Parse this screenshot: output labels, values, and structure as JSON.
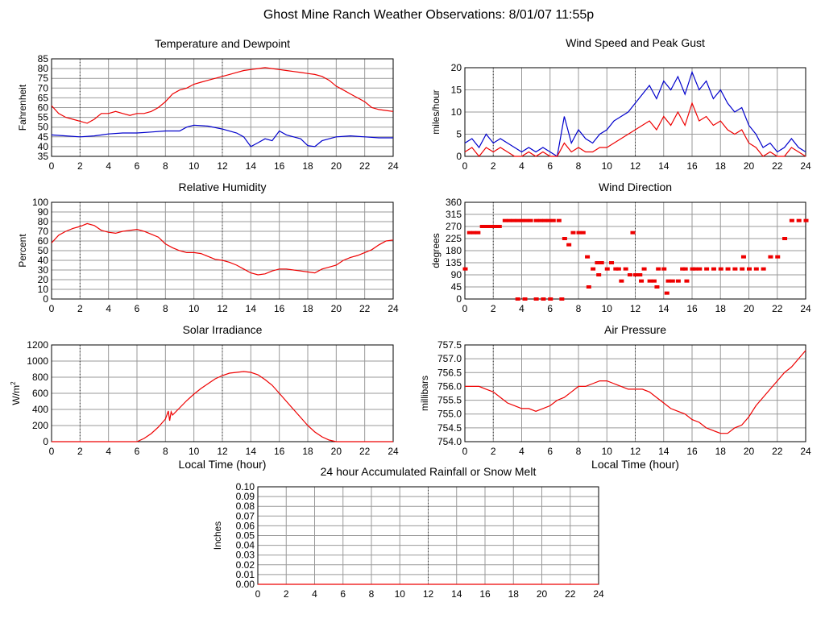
{
  "page": {
    "title": "Ghost Mine Ranch Weather Observations: 8/01/07 11:55p"
  },
  "colors": {
    "red": "#ee0000",
    "blue": "#0000cc",
    "grid": "#999999",
    "axis": "#000000"
  },
  "chart_data": [
    {
      "id": "temp",
      "type": "line",
      "title": "Temperature and Dewpoint",
      "ylabel": "Fahrenheit",
      "xlabel": "",
      "xlim": [
        0,
        24
      ],
      "ylim": [
        35,
        85
      ],
      "xticks": [
        0,
        2,
        4,
        6,
        8,
        10,
        12,
        14,
        16,
        18,
        20,
        22,
        24
      ],
      "yticks": [
        35,
        40,
        45,
        50,
        55,
        60,
        65,
        70,
        75,
        80,
        85
      ],
      "grid": true,
      "series": [
        {
          "color": "#ee0000",
          "x": [
            0,
            0.5,
            1,
            1.5,
            2,
            2.5,
            3,
            3.5,
            4,
            4.5,
            5,
            5.5,
            6,
            6.5,
            7,
            7.5,
            8,
            8.5,
            9,
            9.5,
            10,
            10.5,
            11,
            11.5,
            12,
            12.5,
            13,
            13.5,
            14,
            14.5,
            15,
            15.5,
            16,
            16.5,
            17,
            17.5,
            18,
            18.5,
            19,
            19.5,
            20,
            20.5,
            21,
            21.5,
            22,
            22.5,
            23,
            23.5,
            24
          ],
          "y": [
            61,
            57,
            55,
            54,
            53,
            52,
            54,
            57,
            57,
            58,
            57,
            56,
            57,
            57,
            58,
            60,
            63,
            67,
            69,
            70,
            72,
            73,
            74,
            75,
            76,
            77,
            78,
            79,
            79.5,
            80,
            80.5,
            80,
            79.5,
            79,
            78.5,
            78,
            77.5,
            77,
            76,
            74,
            71,
            69,
            67,
            65,
            63,
            60,
            59,
            58.5,
            58
          ]
        },
        {
          "color": "#0000cc",
          "x": [
            0,
            1,
            2,
            3,
            4,
            5,
            6,
            7,
            8,
            9,
            9.5,
            10,
            11,
            12,
            13,
            13.5,
            14,
            14.5,
            15,
            15.5,
            16,
            16.5,
            17,
            17.5,
            18,
            18.5,
            19,
            19.5,
            20,
            21,
            22,
            23,
            24
          ],
          "y": [
            46,
            45.5,
            45,
            45.5,
            46.5,
            47,
            47,
            47.5,
            48,
            48,
            50,
            51,
            50.5,
            49,
            47,
            45,
            40,
            42,
            44,
            43,
            48,
            46,
            45,
            44,
            40.5,
            40,
            43,
            44,
            45,
            45.5,
            45,
            44.5,
            44.5
          ]
        }
      ]
    },
    {
      "id": "wind",
      "type": "line",
      "title": "Wind Speed and Peak Gust",
      "ylabel": "miles/hour",
      "xlabel": "",
      "xlim": [
        0,
        24
      ],
      "ylim": [
        0,
        20
      ],
      "xticks": [
        0,
        2,
        4,
        6,
        8,
        10,
        12,
        14,
        16,
        18,
        20,
        22,
        24
      ],
      "yticks": [
        0,
        5,
        10,
        15,
        20
      ],
      "grid": true,
      "series": [
        {
          "color": "#0000cc",
          "x": [
            0,
            0.5,
            1,
            1.5,
            2,
            2.5,
            3,
            3.5,
            4,
            4.5,
            5,
            5.5,
            6,
            6.5,
            7,
            7.5,
            8,
            8.5,
            9,
            9.5,
            10,
            10.5,
            11,
            11.5,
            12,
            12.5,
            13,
            13.5,
            14,
            14.5,
            15,
            15.5,
            16,
            16.5,
            17,
            17.5,
            18,
            18.5,
            19,
            19.5,
            20,
            20.5,
            21,
            21.5,
            22,
            22.5,
            23,
            23.5,
            24
          ],
          "y": [
            3,
            4,
            2,
            5,
            3,
            4,
            3,
            2,
            1,
            2,
            1,
            2,
            1,
            0,
            9,
            3,
            6,
            4,
            3,
            5,
            6,
            8,
            9,
            10,
            12,
            14,
            16,
            13,
            17,
            15,
            18,
            14,
            19,
            15,
            17,
            13,
            15,
            12,
            10,
            11,
            7,
            5,
            2,
            3,
            1,
            2,
            4,
            2,
            1
          ]
        },
        {
          "color": "#ee0000",
          "x": [
            0,
            0.5,
            1,
            1.5,
            2,
            2.5,
            3,
            3.5,
            4,
            4.5,
            5,
            5.5,
            6,
            6.5,
            7,
            7.5,
            8,
            8.5,
            9,
            9.5,
            10,
            10.5,
            11,
            11.5,
            12,
            12.5,
            13,
            13.5,
            14,
            14.5,
            15,
            15.5,
            16,
            16.5,
            17,
            17.5,
            18,
            18.5,
            19,
            19.5,
            20,
            20.5,
            21,
            21.5,
            22,
            22.5,
            23,
            23.5,
            24
          ],
          "y": [
            1,
            2,
            0,
            2,
            1,
            2,
            1,
            0,
            0,
            1,
            0,
            1,
            0,
            0,
            3,
            1,
            2,
            1,
            1,
            2,
            2,
            3,
            4,
            5,
            6,
            7,
            8,
            6,
            9,
            7,
            10,
            7,
            12,
            8,
            9,
            7,
            8,
            6,
            5,
            6,
            3,
            2,
            0,
            1,
            0,
            0,
            2,
            1,
            0
          ]
        }
      ]
    },
    {
      "id": "rh",
      "type": "line",
      "title": "Relative Humidity",
      "ylabel": "Percent",
      "xlabel": "",
      "xlim": [
        0,
        24
      ],
      "ylim": [
        0,
        100
      ],
      "xticks": [
        0,
        2,
        4,
        6,
        8,
        10,
        12,
        14,
        16,
        18,
        20,
        22,
        24
      ],
      "yticks": [
        0,
        10,
        20,
        30,
        40,
        50,
        60,
        70,
        80,
        90,
        100
      ],
      "grid": true,
      "series": [
        {
          "color": "#ee0000",
          "x": [
            0,
            0.5,
            1,
            1.5,
            2,
            2.5,
            3,
            3.5,
            4,
            4.5,
            5,
            5.5,
            6,
            6.5,
            7,
            7.5,
            8,
            8.5,
            9,
            9.5,
            10,
            10.5,
            11,
            11.5,
            12,
            12.5,
            13,
            13.5,
            14,
            14.5,
            15,
            15.5,
            16,
            16.5,
            17,
            17.5,
            18,
            18.5,
            19,
            19.5,
            20,
            20.5,
            21,
            21.5,
            22,
            22.5,
            23,
            23.5,
            24
          ],
          "y": [
            58,
            66,
            70,
            73,
            75,
            78,
            76,
            71,
            69,
            68,
            70,
            71,
            72,
            70,
            67,
            64,
            57,
            53,
            50,
            48,
            48,
            47,
            44,
            41,
            40,
            38,
            35,
            31,
            27,
            25,
            26,
            29,
            31,
            31,
            30,
            29,
            28,
            27,
            31,
            33,
            35,
            40,
            43,
            45,
            48,
            51,
            56,
            60,
            61
          ]
        }
      ]
    },
    {
      "id": "wdir",
      "type": "scatter",
      "title": "Wind Direction",
      "ylabel": "degrees",
      "xlabel": "",
      "xlim": [
        0,
        24
      ],
      "ylim": [
        0,
        360
      ],
      "xticks": [
        0,
        2,
        4,
        6,
        8,
        10,
        12,
        14,
        16,
        18,
        20,
        22,
        24
      ],
      "yticks": [
        0,
        45,
        90,
        135,
        180,
        225,
        270,
        315,
        360
      ],
      "grid": true,
      "series": [
        {
          "color": "#ee0000",
          "x": [
            0,
            0.3,
            0.6,
            0.9,
            1.2,
            1.5,
            1.8,
            2.1,
            2.4,
            2.8,
            3.1,
            3.4,
            3.7,
            4.0,
            4.3,
            4.6,
            5.0,
            5.3,
            5.6,
            5.9,
            6.2,
            6.6,
            7.0,
            7.3,
            7.6,
            8.0,
            8.3,
            8.7,
            9.0,
            9.3,
            9.6,
            10.0,
            10.3,
            10.6,
            11.0,
            11.3,
            11.6,
            12.0,
            12.3,
            12.6,
            13.0,
            13.3,
            13.6,
            14.0,
            14.3,
            14.6,
            15.0,
            15.3,
            15.6,
            16.0,
            16.5,
            17.0,
            17.5,
            18.0,
            18.5,
            19.0,
            19.5,
            20.0,
            20.5,
            21.0,
            21.5,
            22.0,
            22.5,
            23.0,
            23.5,
            24.0,
            3.7,
            4.2,
            5.0,
            5.5,
            6.0,
            6.8,
            8.6,
            9.4,
            10.8,
            11.8,
            12.4,
            13.5,
            14.2,
            15.5,
            16.2,
            19.6
          ],
          "y": [
            112,
            247,
            247,
            247,
            270,
            270,
            270,
            270,
            270,
            292,
            292,
            292,
            292,
            292,
            292,
            292,
            292,
            292,
            292,
            292,
            292,
            292,
            225,
            202,
            247,
            247,
            247,
            45,
            112,
            135,
            135,
            112,
            135,
            112,
            67,
            112,
            90,
            90,
            90,
            112,
            67,
            67,
            112,
            112,
            67,
            67,
            67,
            112,
            67,
            112,
            112,
            112,
            112,
            112,
            112,
            112,
            112,
            112,
            112,
            112,
            157,
            157,
            225,
            292,
            292,
            292,
            0,
            0,
            0,
            0,
            0,
            0,
            157,
            90,
            112,
            247,
            67,
            45,
            22,
            112,
            112,
            157
          ]
        }
      ]
    },
    {
      "id": "solar",
      "type": "line",
      "title": "Solar Irradiance",
      "ylabel": "W/m",
      "ylabel_sup": "2",
      "xlabel": "Local Time (hour)",
      "xlim": [
        0,
        24
      ],
      "ylim": [
        0,
        1200
      ],
      "xticks": [
        0,
        2,
        4,
        6,
        8,
        10,
        12,
        14,
        16,
        18,
        20,
        22,
        24
      ],
      "yticks": [
        0,
        200,
        400,
        600,
        800,
        1000,
        1200
      ],
      "grid": true,
      "series": [
        {
          "color": "#ee0000",
          "x": [
            0,
            1,
            2,
            3,
            4,
            5,
            6,
            6.5,
            7,
            7.5,
            8,
            8.2,
            8.3,
            8.4,
            8.5,
            9,
            9.5,
            10,
            10.5,
            11,
            11.5,
            12,
            12.5,
            13,
            13.5,
            14,
            14.5,
            15,
            15.5,
            16,
            16.5,
            17,
            17.5,
            18,
            18.5,
            19,
            19.5,
            20,
            21,
            22,
            23,
            24
          ],
          "y": [
            0,
            0,
            0,
            0,
            0,
            0,
            0,
            40,
            100,
            180,
            280,
            380,
            260,
            370,
            330,
            420,
            510,
            590,
            660,
            720,
            780,
            820,
            850,
            860,
            870,
            860,
            830,
            770,
            700,
            600,
            500,
            400,
            300,
            200,
            120,
            60,
            20,
            0,
            0,
            0,
            0,
            0
          ]
        }
      ]
    },
    {
      "id": "pressure",
      "type": "line",
      "title": "Air Pressure",
      "ylabel": "millibars",
      "xlabel": "Local Time (hour)",
      "xlim": [
        0,
        24
      ],
      "ylim": [
        754.0,
        757.5
      ],
      "xticks": [
        0,
        2,
        4,
        6,
        8,
        10,
        12,
        14,
        16,
        18,
        20,
        22,
        24
      ],
      "yticks": [
        "754.0",
        "754.5",
        "755.0",
        "755.5",
        "756.0",
        "756.5",
        "757.0",
        "757.5"
      ],
      "grid": true,
      "series": [
        {
          "color": "#ee0000",
          "x": [
            0,
            0.5,
            1,
            1.5,
            2,
            2.5,
            3,
            3.5,
            4,
            4.5,
            5,
            5.5,
            6,
            6.5,
            7,
            7.5,
            8,
            8.5,
            9,
            9.5,
            10,
            10.5,
            11,
            11.5,
            12,
            12.5,
            13,
            13.5,
            14,
            14.5,
            15,
            15.5,
            16,
            16.5,
            17,
            17.5,
            18,
            18.5,
            19,
            19.5,
            20,
            20.5,
            21,
            21.5,
            22,
            22.5,
            23,
            23.5,
            24
          ],
          "y": [
            756.0,
            756.0,
            756.0,
            755.9,
            755.8,
            755.6,
            755.4,
            755.3,
            755.2,
            755.2,
            755.1,
            755.2,
            755.3,
            755.5,
            755.6,
            755.8,
            756.0,
            756.0,
            756.1,
            756.2,
            756.2,
            756.1,
            756.0,
            755.9,
            755.9,
            755.9,
            755.8,
            755.6,
            755.4,
            755.2,
            755.1,
            755.0,
            754.8,
            754.7,
            754.5,
            754.4,
            754.3,
            754.3,
            754.5,
            754.6,
            754.9,
            755.3,
            755.6,
            755.9,
            756.2,
            756.5,
            756.7,
            757.0,
            757.3
          ]
        }
      ]
    },
    {
      "id": "rain",
      "type": "line",
      "title": "24 hour Accumulated Rainfall or Snow Melt",
      "ylabel": "Inches",
      "xlabel": "",
      "xlim": [
        0,
        24
      ],
      "ylim": [
        0,
        0.1
      ],
      "xticks": [
        0,
        2,
        4,
        6,
        8,
        10,
        12,
        14,
        16,
        18,
        20,
        22,
        24
      ],
      "yticks": [
        "0.00",
        "0.01",
        "0.02",
        "0.03",
        "0.04",
        "0.05",
        "0.06",
        "0.07",
        "0.08",
        "0.09",
        "0.10"
      ],
      "grid": true,
      "series": [
        {
          "color": "#ee0000",
          "x": [
            0,
            24
          ],
          "y": [
            0,
            0
          ]
        }
      ]
    }
  ]
}
